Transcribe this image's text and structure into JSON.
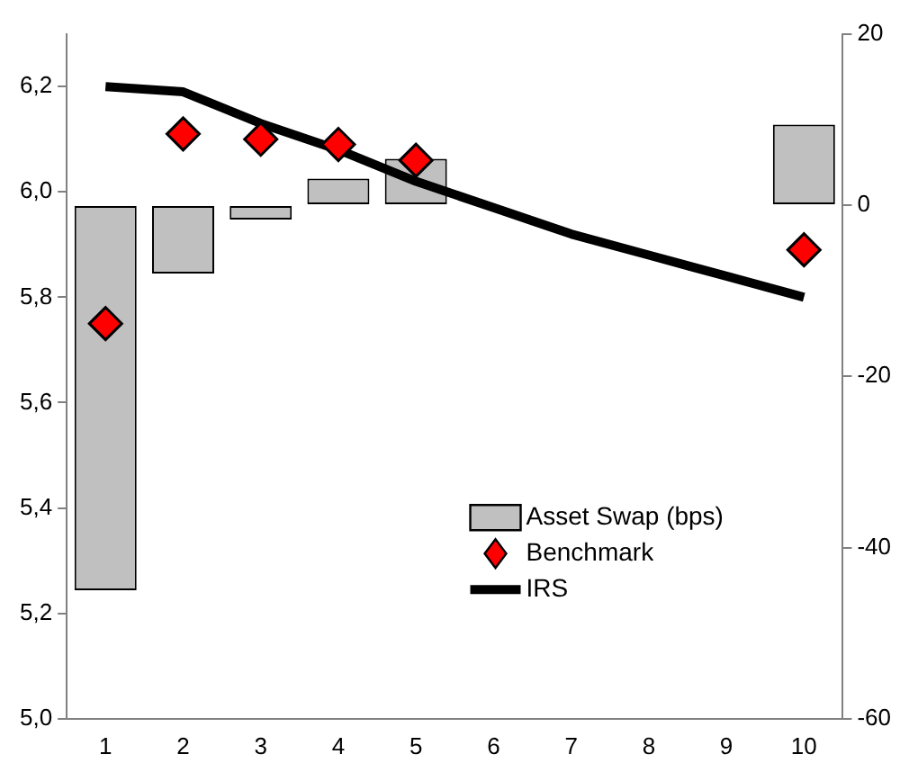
{
  "chart_data": {
    "type": "bar",
    "categories": [
      "1",
      "2",
      "3",
      "4",
      "5",
      "6",
      "7",
      "8",
      "9",
      "10"
    ],
    "series": [
      {
        "name": "Asset Swap (bps)",
        "axis": "y2",
        "color": "#c0c0c0",
        "values": [
          -45,
          -8,
          -1.7,
          3.1,
          5.4,
          null,
          null,
          null,
          null,
          9.4
        ]
      },
      {
        "name": "Benchmark",
        "type": "scatter",
        "marker": "diamond",
        "color": "#ff0000",
        "values": [
          5.75,
          6.11,
          6.1,
          6.09,
          6.06,
          null,
          null,
          null,
          null,
          5.89
        ]
      },
      {
        "name": "IRS",
        "type": "line",
        "marker": "none",
        "color": "#000000",
        "values": [
          6.2,
          6.19,
          6.13,
          6.08,
          6.02,
          5.97,
          5.92,
          5.88,
          5.84,
          5.8
        ]
      }
    ],
    "ylim": [
      5.0,
      6.3
    ],
    "yticks": [
      {
        "value": 5.0,
        "label": "5,0"
      },
      {
        "value": 5.2,
        "label": "5,2"
      },
      {
        "value": 5.4,
        "label": "5,4"
      },
      {
        "value": 5.6,
        "label": "5,6"
      },
      {
        "value": 5.8,
        "label": "5,8"
      },
      {
        "value": 6.0,
        "label": "6,0"
      },
      {
        "value": 6.2,
        "label": "6,2"
      }
    ],
    "y2lim": [
      -60,
      20
    ],
    "y2ticks": [
      -60,
      -40,
      -20,
      0,
      20
    ],
    "grid": false,
    "legend": "bottom right"
  }
}
